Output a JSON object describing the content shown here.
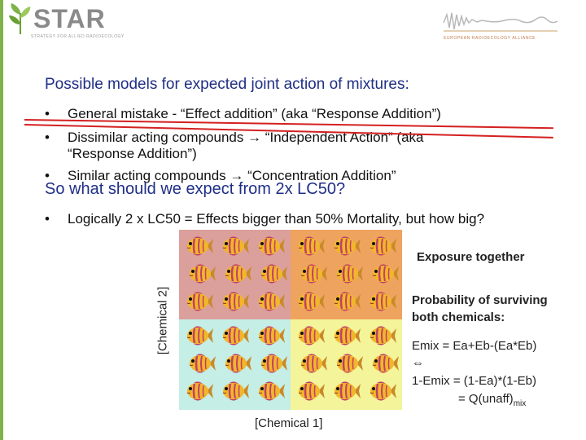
{
  "logos": {
    "star_word": "STAR",
    "star_sub": "STRATEGY FOR ALLIED RADIOECOLOGY",
    "alliance_sub": "EUROPEAN RADIOECOLOGY ALLIANCE"
  },
  "title": "Possible models for expected joint action of mixtures:",
  "bullets": [
    {
      "marker": "•",
      "text": "General mistake - “Effect addition” (aka “Response Addition”)"
    },
    {
      "marker": "•",
      "text": "Dissimilar acting compounds → “Independent Action” (aka “Response Addition”)"
    },
    {
      "marker": "•",
      "text": "Similar acting compounds → “Concentration Addition”"
    }
  ],
  "subtitle": "So what should we expect from 2x LC50?",
  "bullet2": {
    "marker": "•",
    "text": "Logically 2 x LC50 = Effects bigger than 50% Mortality, but how big?"
  },
  "figure": {
    "y_label": "[Chemical 2]",
    "x_label": "[Chemical 1]",
    "quadrant_colors": {
      "top_left": "#dba09c",
      "top_right": "#eea45e",
      "bottom_left": "#c4eee6",
      "bottom_right": "#f4f49a"
    }
  },
  "notes": {
    "exposure": "Exposure together",
    "probability_line1": "Probability of surviving",
    "probability_line2": "both chemicals:",
    "equation1": "Emix = Ea+Eb-(Ea*Eb)",
    "equivalence": "⇔",
    "equation2": "1-Emix = (1-Ea)*(1-Eb)",
    "equation3_main": "= Q(unaff)",
    "equation3_sub": "mix"
  }
}
